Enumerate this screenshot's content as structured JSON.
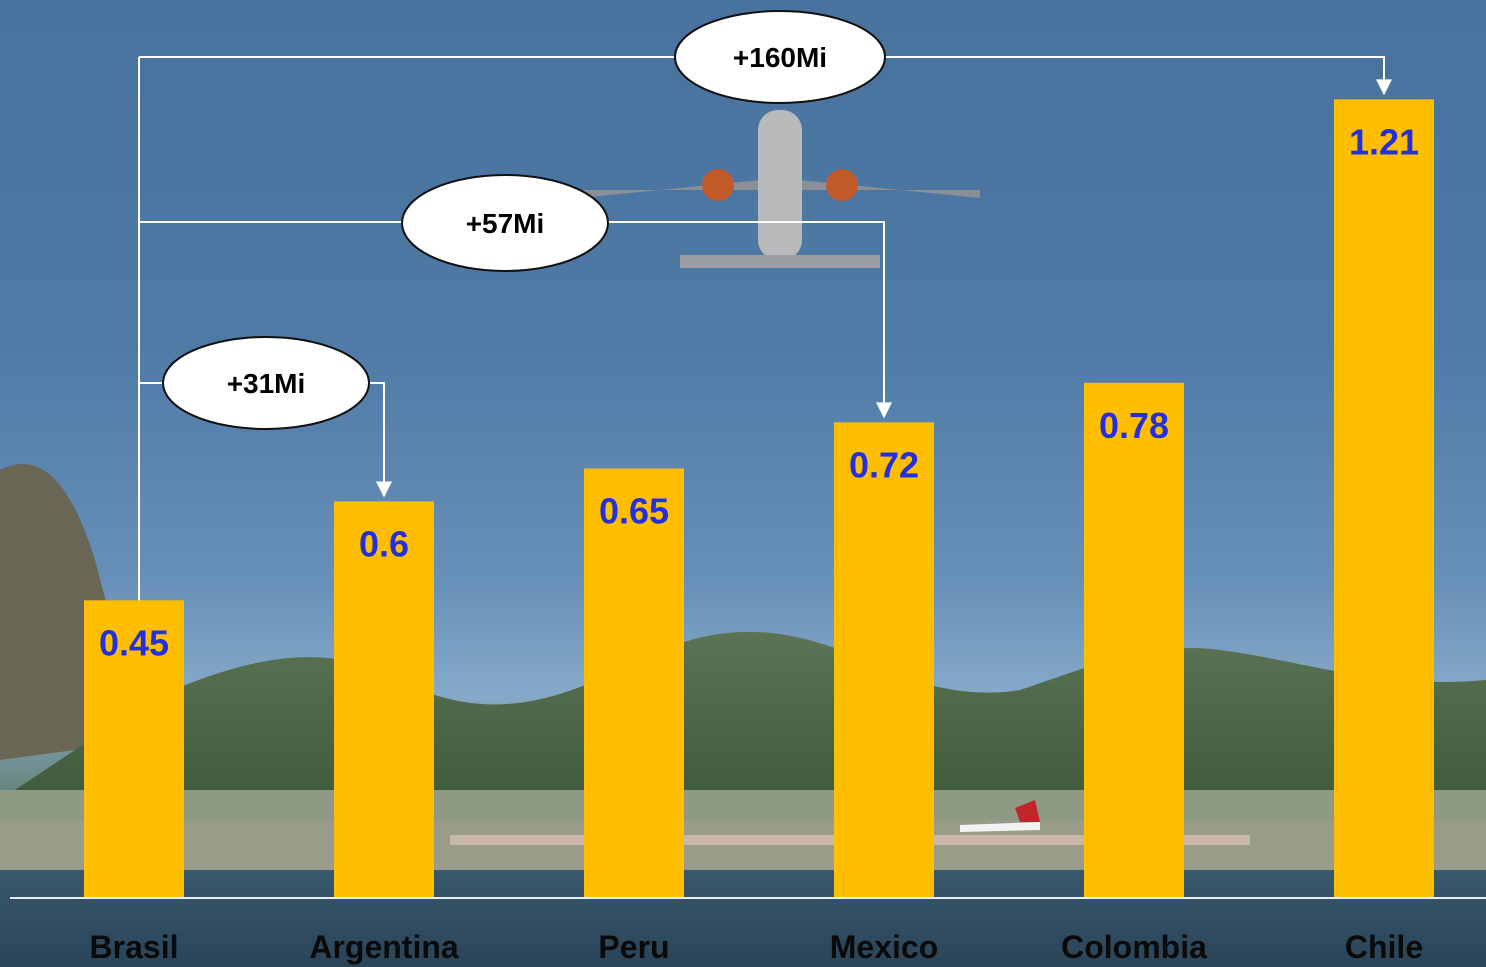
{
  "chart_data": {
    "type": "bar",
    "categories": [
      "Brasil",
      "Argentina",
      "Peru",
      "Mexico",
      "Colombia",
      "Chile"
    ],
    "values": [
      0.45,
      0.6,
      0.65,
      0.72,
      0.78,
      1.21
    ],
    "ylim": [
      0,
      1.3
    ],
    "grid": false,
    "annotations": [
      {
        "text": "+31Mi",
        "from": "Brasil",
        "to": "Argentina"
      },
      {
        "text": "+57Mi",
        "from": "Brasil",
        "to": "Mexico"
      },
      {
        "text": "+160Mi",
        "from": "Brasil",
        "to": "Chile"
      }
    ]
  },
  "colors": {
    "bar": "#ffbf00",
    "value_text": "#2430e0",
    "connector": "#ffffff",
    "bubble_fill": "#ffffff"
  },
  "background": {
    "description_icons": [
      "airplane-icon",
      "mountain-icon",
      "runway-icon"
    ]
  }
}
